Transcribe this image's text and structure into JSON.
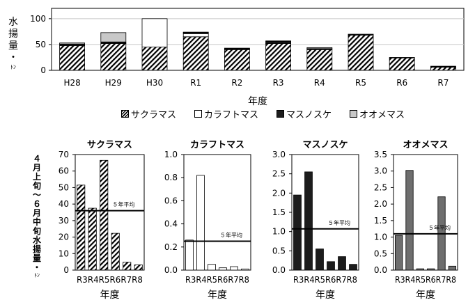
{
  "colors": {
    "sakura_pattern": "#000000",
    "karafuto": "#ffffff",
    "masu": "#1c1c1c",
    "ooome": "#c8c8c8",
    "small_ooome": "#6e6e6e",
    "avg_line": "#000000"
  },
  "top_ylabel_chars": [
    "水",
    "揚",
    "量",
    "・",
    "ﾄﾝ"
  ],
  "bottom_ylabel_chars": [
    "４",
    "月",
    "上",
    "旬",
    "～",
    "６",
    "月",
    "中",
    "旬",
    "水",
    "揚",
    "量",
    "・",
    "ﾄﾝ"
  ],
  "legend": [
    {
      "label": "サクラマス",
      "swatch": "sakura"
    },
    {
      "label": "カラフトマス",
      "swatch": "karafuto"
    },
    {
      "label": "マスノスケ",
      "swatch": "masu"
    },
    {
      "label": "オオメマス",
      "swatch": "ooome"
    }
  ],
  "chart_data": [
    {
      "type": "bar",
      "stacked": true,
      "xlabel": "年度",
      "categories": [
        "H28",
        "H29",
        "H30",
        "R1",
        "R2",
        "R3",
        "R4",
        "R5",
        "R6",
        "R7"
      ],
      "ylim": [
        0,
        120
      ],
      "yticks": [
        0,
        50,
        100
      ],
      "grid": true,
      "series": [
        {
          "name": "サクラマス",
          "pattern": "hatch",
          "values": [
            48,
            52,
            45,
            65,
            40,
            52,
            40,
            68,
            24,
            6
          ]
        },
        {
          "name": "カラフトマス",
          "pattern": "white",
          "values": [
            1,
            1,
            55,
            6,
            0,
            1,
            0,
            0,
            0,
            0
          ]
        },
        {
          "name": "マスノスケ",
          "pattern": "black",
          "values": [
            2,
            2,
            0,
            2,
            2,
            3,
            2,
            2,
            1,
            1
          ]
        },
        {
          "name": "オオメマス",
          "pattern": "gray",
          "values": [
            2,
            18,
            0,
            1,
            1,
            1,
            2,
            0,
            0,
            1
          ]
        }
      ]
    },
    {
      "type": "bar",
      "title": "サクラマス",
      "pattern": "hatch",
      "xlabel": "年度",
      "categories": [
        "R3",
        "R4",
        "R5",
        "R6",
        "R7",
        "R8"
      ],
      "values": [
        51.5,
        37.5,
        66.5,
        22.3,
        4.8,
        3.2
      ],
      "ylim": [
        0,
        70
      ],
      "yticks": [
        "0",
        "10",
        "20",
        "30",
        "40",
        "50",
        "60",
        "70"
      ],
      "avg": 36,
      "avg_label": "５年平均"
    },
    {
      "type": "bar",
      "title": "カラフトマス",
      "pattern": "white",
      "xlabel": "年度",
      "categories": [
        "R3",
        "R4",
        "R5",
        "R6",
        "R7",
        "R8"
      ],
      "values": [
        0.26,
        0.82,
        0.05,
        0.02,
        0.03,
        0.01
      ],
      "ylim": [
        0,
        1.0
      ],
      "yticks": [
        "0.0",
        "0.2",
        "0.4",
        "0.6",
        "0.8",
        "1.0"
      ],
      "avg": 0.25,
      "avg_label": "５年平均"
    },
    {
      "type": "bar",
      "title": "マスノスケ",
      "pattern": "black",
      "xlabel": "年度",
      "categories": [
        "R3",
        "R4",
        "R5",
        "R6",
        "R7",
        "R8"
      ],
      "values": [
        1.95,
        2.55,
        0.55,
        0.22,
        0.35,
        0.15
      ],
      "ylim": [
        0,
        3.0
      ],
      "yticks": [
        "0.0",
        "0.5",
        "1.0",
        "1.5",
        "2.0",
        "2.5",
        "3.0"
      ],
      "avg": 1.07,
      "avg_label": "５年平均"
    },
    {
      "type": "bar",
      "title": "オオメマス",
      "pattern": "darkgray",
      "xlabel": "年度",
      "categories": [
        "R3",
        "R4",
        "R5",
        "R6",
        "R7",
        "R8"
      ],
      "values": [
        1.05,
        3.02,
        0.04,
        0.04,
        2.22,
        0.12
      ],
      "ylim": [
        0,
        3.5
      ],
      "yticks": [
        "0.0",
        "0.5",
        "1.0",
        "1.5",
        "2.0",
        "2.5",
        "3.0",
        "3.5"
      ],
      "avg": 1.1,
      "avg_label": "５年平均"
    }
  ]
}
